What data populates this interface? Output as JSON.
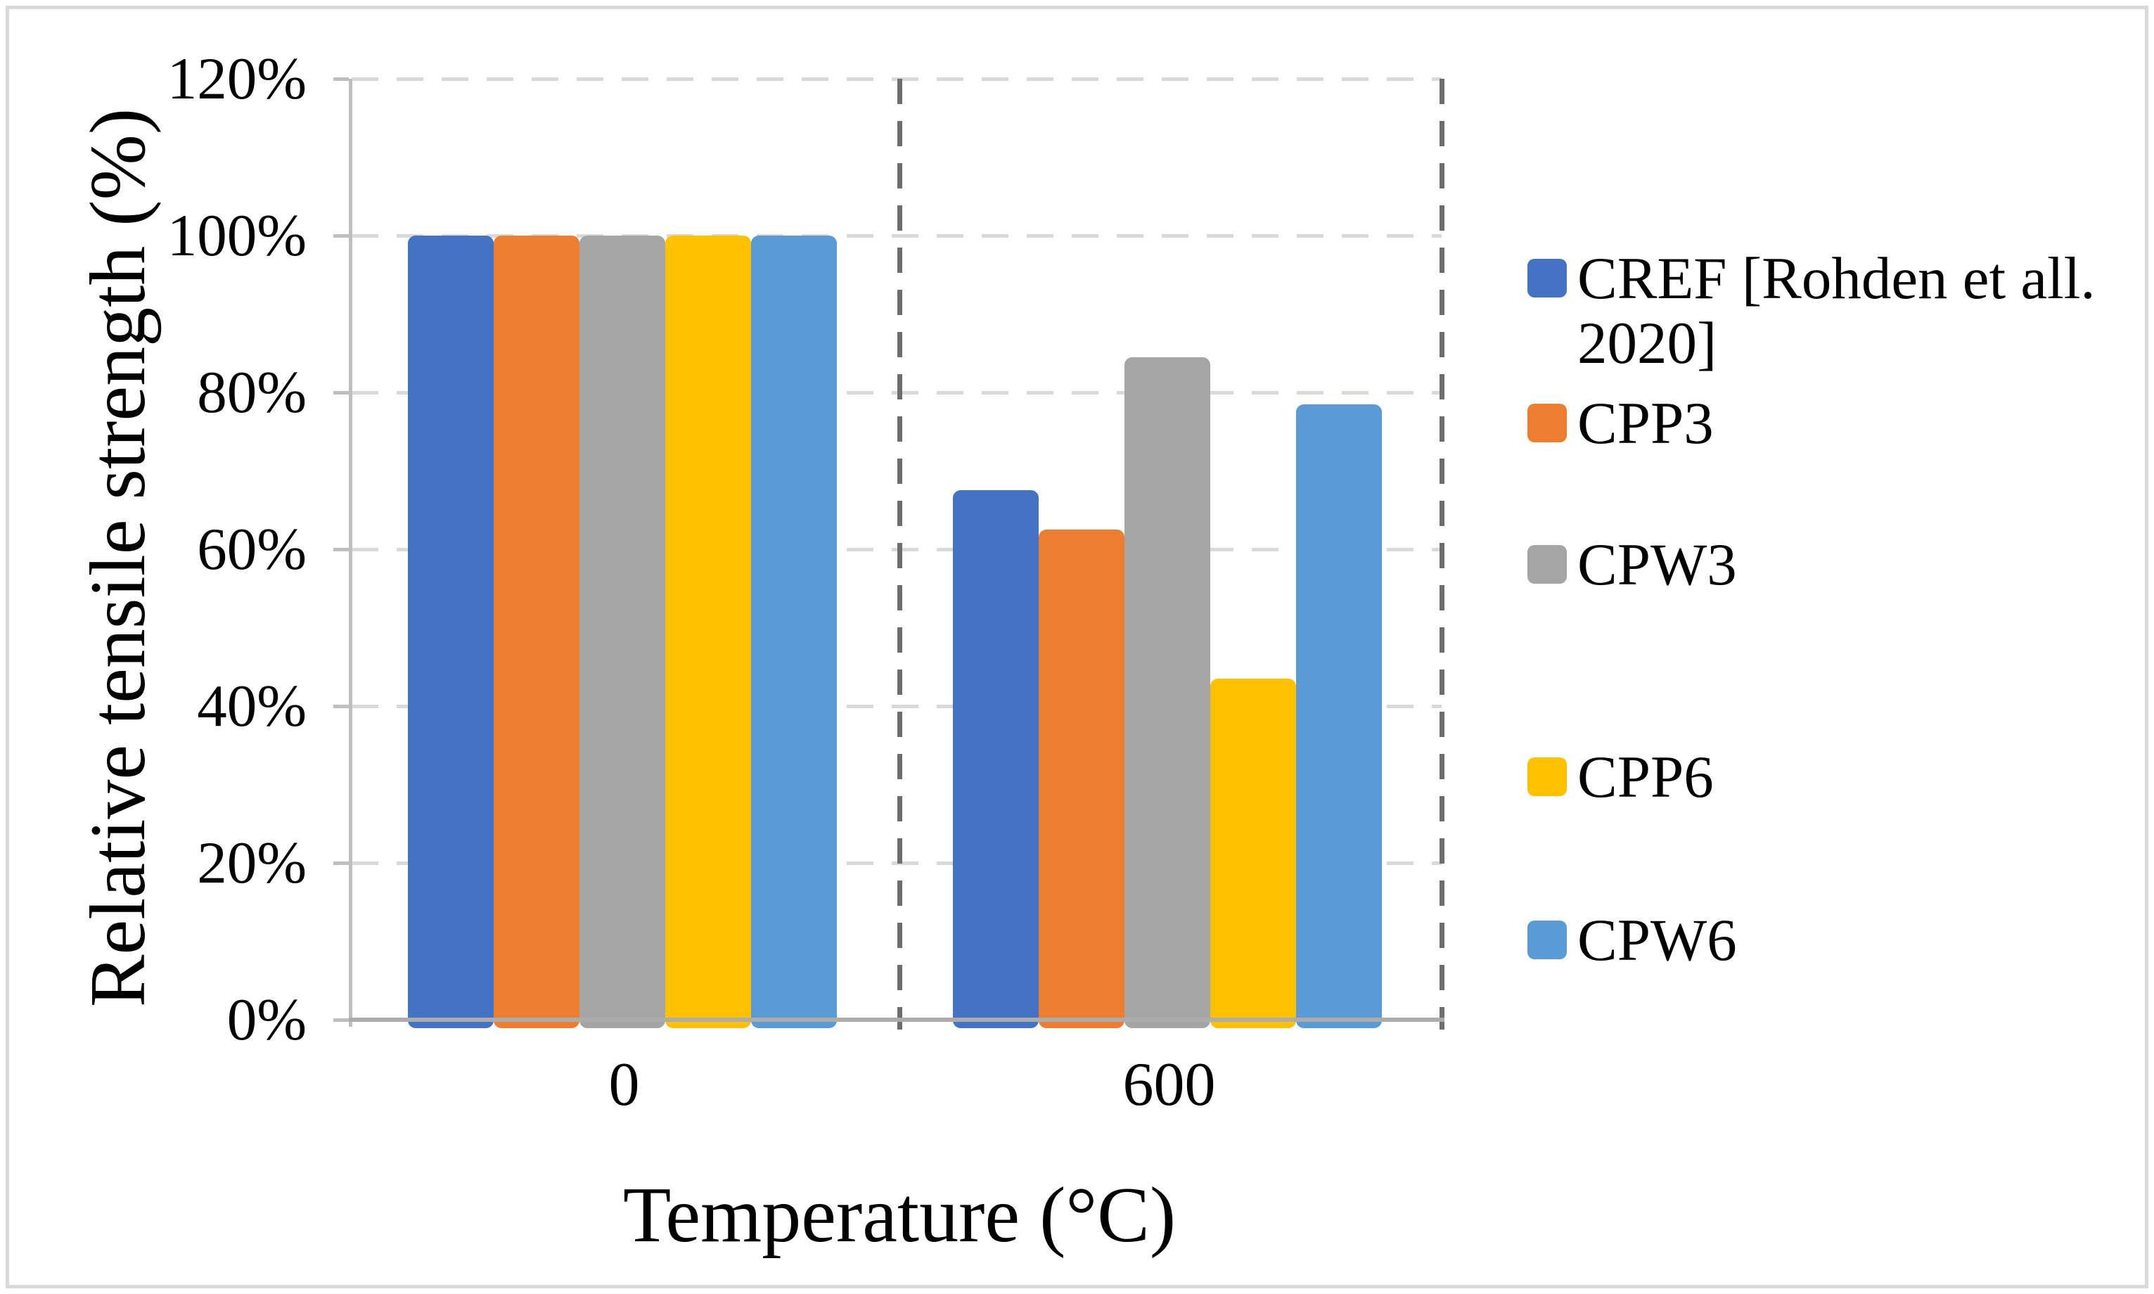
{
  "chart_data": {
    "type": "bar",
    "title": "",
    "categories": [
      "0",
      "600"
    ],
    "series": [
      {
        "name": "CREF [Rohden et all. 2020]",
        "legend_lines": [
          "CREF [Rohden et all.",
          "2020]"
        ],
        "color": "#4472C4",
        "values": [
          100,
          67.5
        ]
      },
      {
        "name": "CPP3",
        "legend_lines": [
          "CPP3"
        ],
        "color": "#ED7D31",
        "values": [
          100,
          62.5
        ]
      },
      {
        "name": "CPW3",
        "legend_lines": [
          "CPW3"
        ],
        "color": "#A5A5A5",
        "values": [
          100,
          84.5
        ]
      },
      {
        "name": "CPP6",
        "legend_lines": [
          "CPP6"
        ],
        "color": "#FFC000",
        "values": [
          100,
          43.5
        ]
      },
      {
        "name": "CPW6",
        "legend_lines": [
          "CPW6"
        ],
        "color": "#5B9BD5",
        "values": [
          100,
          78.5
        ]
      }
    ],
    "xlabel": "Temperature (°C)",
    "ylabel": "Relative tensile strength (%)",
    "ylim": [
      0,
      120
    ],
    "ytick_step": 20,
    "ytick_labels": [
      "0%",
      "20%",
      "40%",
      "60%",
      "80%",
      "100%",
      "120%"
    ],
    "grid": "horizontal dashed gridlines; dashed vertical category separator and right plot border; no top/bottom chart title",
    "legend_position": "right",
    "style": {
      "grid_color": "#D9D9D9",
      "axis_color": "#BFBFBF",
      "x_axis_color": "#ACACAC",
      "separator_color": "#6E6E6E",
      "frame_border_color": "#D9D9D9",
      "text_color": "#000000",
      "background": "#FFFFFF"
    }
  }
}
